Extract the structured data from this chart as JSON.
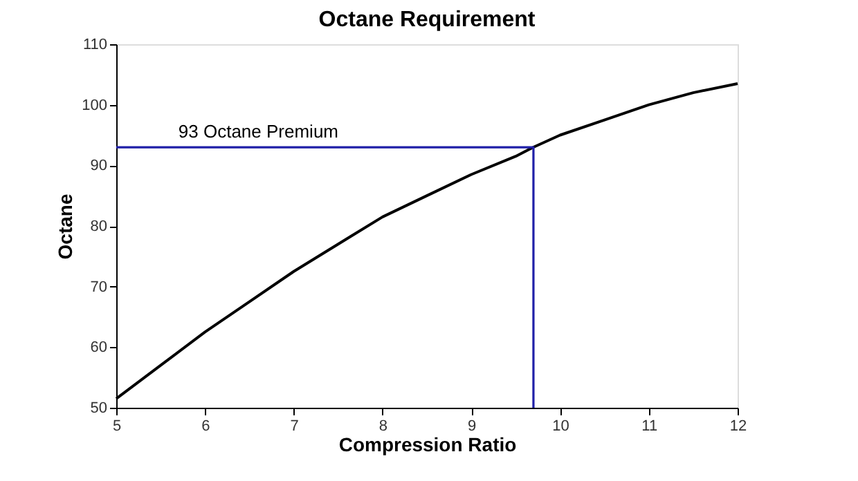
{
  "chart_data": {
    "type": "line",
    "title": "Octane Requirement",
    "xlabel": "Compression Ratio",
    "ylabel": "Octane",
    "xlim": [
      5,
      12
    ],
    "xticks": [
      5,
      6,
      7,
      8,
      9,
      10,
      11,
      12
    ],
    "ylim": [
      50,
      110
    ],
    "yticks": [
      50,
      60,
      70,
      80,
      90,
      100,
      110
    ],
    "marker": "none",
    "line_style": "solid",
    "series": [
      {
        "color": "#000000",
        "x": [
          5,
          5.5,
          6,
          6.5,
          7,
          7.5,
          8,
          8.5,
          9,
          9.5,
          9.7,
          10,
          10.5,
          11,
          11.5,
          12
        ],
        "values": [
          51.5,
          57,
          62.5,
          67.5,
          72.5,
          77,
          81.5,
          85,
          88.5,
          91.5,
          93,
          95,
          97.5,
          100,
          102,
          103.5
        ]
      },
      {
        "color": "#1f1fa8",
        "x": [
          5,
          9.7,
          9.7
        ],
        "values": [
          93,
          93,
          50
        ]
      }
    ],
    "annotations": [
      {
        "text": "93 Octane Premium",
        "x": 5.7,
        "y": 93
      }
    ]
  }
}
